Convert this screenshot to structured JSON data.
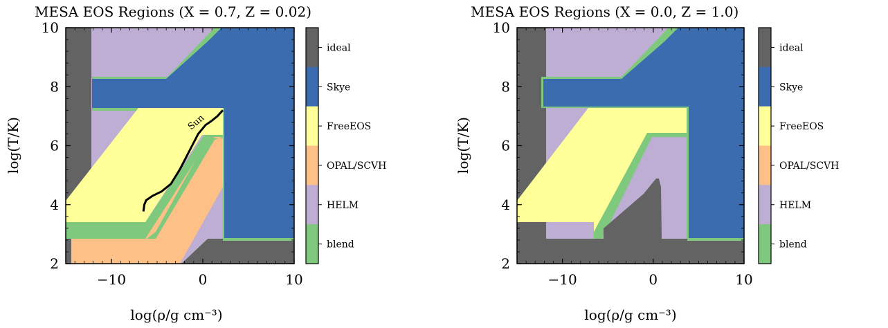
{
  "colors": {
    "ideal": "#636363",
    "skye": "#3a6caf",
    "freeeos": "#ffff99",
    "opal_scvh": "#fdc086",
    "helm": "#beaed4",
    "blend": "#7fc97f"
  },
  "chart_data": [
    {
      "type": "heatmap",
      "title": "MESA EOS Regions (X = 0.7, Z = 0.02)",
      "xlabel": "log(ρ/g cm⁻³)",
      "ylabel": "log(T/K)",
      "xlim": [
        -15,
        10
      ],
      "ylim": [
        2,
        10
      ],
      "xticks": [
        -10,
        0,
        10
      ],
      "yticks": [
        2,
        4,
        6,
        8,
        10
      ],
      "colorbar": [
        "ideal",
        "Skye",
        "FreeEOS",
        "OPAL/SCVH",
        "HELM",
        "blend"
      ],
      "annotation": "Sun",
      "sun_profile": {
        "log_rho": [
          -6.5,
          -6.4,
          -6.2,
          -5.5,
          -4.5,
          -3.5,
          -2.5,
          -1.5,
          -0.5,
          0.3,
          1.0,
          1.6,
          2.2
        ],
        "log_T": [
          3.77,
          4.0,
          4.15,
          4.3,
          4.45,
          4.7,
          5.2,
          5.8,
          6.4,
          6.7,
          6.85,
          7.0,
          7.2
        ]
      },
      "regions": {
        "ideal": [
          [
            -15,
            2
          ],
          [
            10,
            2
          ],
          [
            10,
            10
          ],
          [
            -15,
            10
          ]
        ],
        "helm": [
          [
            -12,
            3
          ],
          [
            2.2,
            3
          ],
          [
            2.2,
            10
          ],
          [
            -12,
            10
          ]
        ],
        "skye": [
          [
            2.5,
            10
          ],
          [
            10,
            10
          ],
          [
            10,
            3
          ],
          [
            2.5,
            3
          ],
          [
            2.5,
            7.2
          ],
          [
            -12,
            7.2
          ],
          [
            -12,
            8.2
          ],
          [
            -4,
            8.2
          ],
          [
            3.5,
            10
          ]
        ],
        "freeeos": [
          [
            -15,
            3.1
          ],
          [
            -6,
            3.1
          ],
          [
            1.8,
            6.3
          ],
          [
            1.8,
            7.2
          ],
          [
            -6,
            7.2
          ],
          [
            -15,
            3.8
          ]
        ],
        "opal_scvh": [
          [
            -14.7,
            2.15
          ],
          [
            -2.5,
            2.15
          ],
          [
            2.2,
            4.4
          ],
          [
            2.2,
            6.3
          ],
          [
            1.5,
            6.3
          ],
          [
            -6,
            2.95
          ],
          [
            -14.7,
            2.95
          ]
        ]
      }
    },
    {
      "type": "heatmap",
      "title": "MESA EOS Regions (X = 0.0, Z = 1.0)",
      "xlabel": "log(ρ/g cm⁻³)",
      "ylabel": "log(T/K)",
      "xlim": [
        -15,
        10
      ],
      "ylim": [
        2,
        10
      ],
      "xticks": [
        -10,
        0,
        10
      ],
      "yticks": [
        2,
        4,
        6,
        8,
        10
      ],
      "colorbar": [
        "ideal",
        "Skye",
        "FreeEOS",
        "OPAL/SCVH",
        "HELM",
        "blend"
      ],
      "regions": {
        "ideal": [
          [
            -15,
            2
          ],
          [
            10,
            2
          ],
          [
            10,
            10
          ],
          [
            -15,
            10
          ]
        ],
        "helm": [
          [
            -12,
            3
          ],
          [
            3.5,
            3
          ],
          [
            3.5,
            10
          ],
          [
            -12,
            10
          ]
        ],
        "skye": [
          [
            3.8,
            10
          ],
          [
            10,
            10
          ],
          [
            10,
            3
          ],
          [
            3.8,
            3
          ],
          [
            3.8,
            7.3
          ],
          [
            -11.8,
            7.3
          ],
          [
            -11.8,
            8.3
          ],
          [
            -3.5,
            8.3
          ],
          [
            3.5,
            10
          ]
        ],
        "freeeos": [
          [
            -15,
            3.1
          ],
          [
            -6.5,
            3.1
          ],
          [
            -6.5,
            3.4
          ],
          [
            -0.2,
            6.5
          ],
          [
            3.7,
            6.5
          ],
          [
            3.7,
            7.3
          ],
          [
            -6,
            7.3
          ],
          [
            -15,
            3.5
          ]
        ],
        "ideal_cold": [
          [
            -5.8,
            3
          ],
          [
            0.2,
            3.0
          ],
          [
            1.0,
            3.0
          ],
          [
            1.0,
            4.9
          ],
          [
            0.2,
            5.0
          ],
          [
            -5.8,
            3.3
          ]
        ]
      }
    }
  ]
}
